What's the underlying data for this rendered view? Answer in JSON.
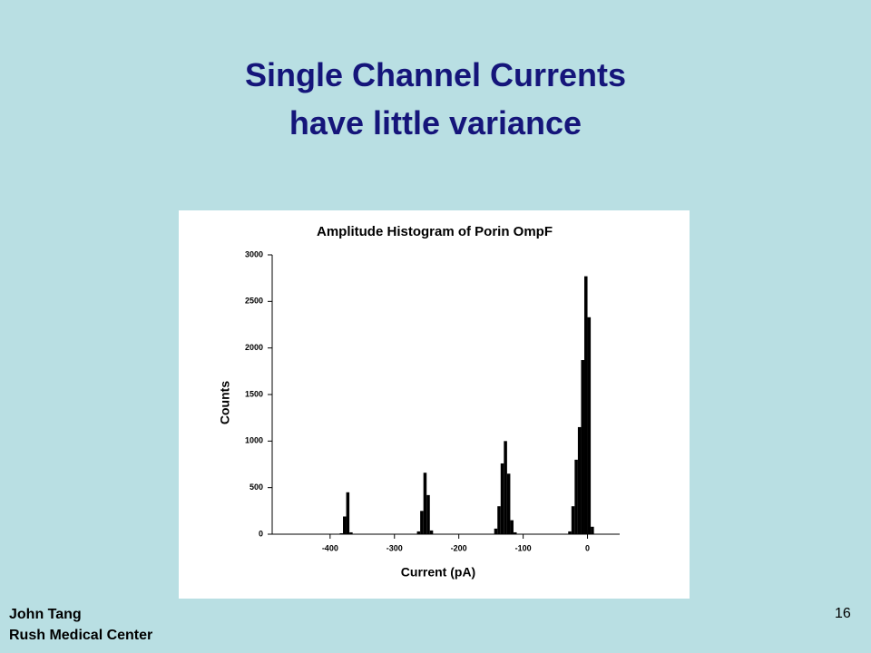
{
  "slide": {
    "title_line1": "Single Channel Currents",
    "title_line2": "have little variance",
    "author": "John Tang",
    "institution": "Rush Medical Center",
    "page_number": "16"
  },
  "chart_data": {
    "type": "histogram",
    "title": "Amplitude Histogram of Porin OmpF",
    "x_label": "Current (pA)",
    "y_label": "Counts",
    "color": "#000000",
    "bins": [
      -490,
      -485,
      -480,
      -475,
      -470,
      -465,
      -460,
      -455,
      -450,
      -445,
      -440,
      -435,
      -430,
      -425,
      -420,
      -415,
      -410,
      -405,
      -400,
      -395,
      -390,
      -385,
      -380,
      -375,
      -370,
      -365,
      -360,
      -355,
      -350,
      -345,
      -340,
      -335,
      -330,
      -325,
      -320,
      -315,
      -310,
      -305,
      -300,
      -295,
      -290,
      -285,
      -280,
      -275,
      -270,
      -265,
      -260,
      -255,
      -250,
      -245,
      -240,
      -235,
      -230,
      -225,
      -220,
      -215,
      -210,
      -205,
      -200,
      -195,
      -190,
      -185,
      -180,
      -175,
      -170,
      -165,
      -160,
      -155,
      -150,
      -145,
      -140,
      -135,
      -130,
      -125,
      -120,
      -115,
      -110,
      -105,
      -100,
      -95,
      -90,
      -85,
      -80,
      -75,
      -70,
      -65,
      -60,
      -55,
      -50,
      -45,
      -40,
      -35,
      -30,
      -25,
      -20,
      -15,
      -10,
      -5,
      0,
      5,
      10,
      15,
      20,
      25,
      30,
      35,
      40,
      45,
      50
    ],
    "counts": [
      0,
      0,
      0,
      0,
      0,
      0,
      0,
      0,
      0,
      0,
      0,
      0,
      0,
      0,
      0,
      0,
      0,
      0,
      0,
      0,
      0,
      10,
      190,
      450,
      20,
      0,
      0,
      0,
      0,
      0,
      0,
      0,
      0,
      0,
      0,
      0,
      0,
      0,
      0,
      0,
      0,
      0,
      0,
      0,
      0,
      30,
      250,
      660,
      420,
      40,
      0,
      0,
      0,
      0,
      0,
      0,
      0,
      0,
      0,
      0,
      0,
      0,
      0,
      0,
      0,
      0,
      0,
      0,
      0,
      60,
      300,
      760,
      1000,
      650,
      150,
      20,
      0,
      0,
      0,
      0,
      0,
      0,
      0,
      0,
      0,
      0,
      0,
      0,
      0,
      0,
      0,
      0,
      30,
      300,
      800,
      1150,
      1870,
      2770,
      2330,
      80,
      0,
      0,
      0,
      0,
      0,
      0,
      0,
      0
    ],
    "xlim": [
      -490,
      50
    ],
    "xticks": [
      -400,
      -300,
      -200,
      -100,
      0
    ],
    "ylim": [
      0,
      3000
    ],
    "yticks": [
      0,
      500,
      1000,
      1500,
      2000,
      2500,
      3000
    ]
  }
}
